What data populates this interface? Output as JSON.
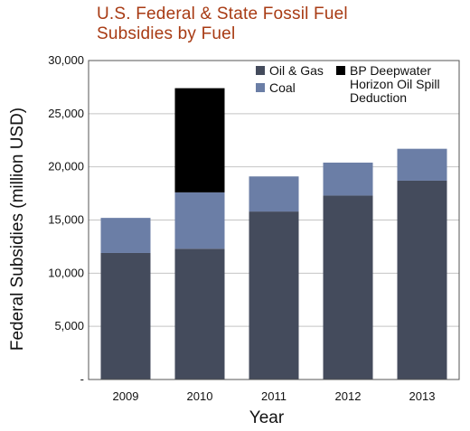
{
  "chart_data": {
    "type": "bar",
    "stacked": true,
    "title_lines": [
      "U.S. Federal & State Fossil Fuel",
      "Subsidies by Fuel"
    ],
    "xlabel": "Year",
    "ylabel": "Federal Subsidies (million USD)",
    "categories": [
      "2009",
      "2010",
      "2011",
      "2012",
      "2013"
    ],
    "ylim": [
      0,
      30000
    ],
    "yticks": [
      0,
      5000,
      10000,
      15000,
      20000,
      25000,
      30000
    ],
    "ytick_labels": [
      "-",
      "5,000",
      "10,000",
      "15,000",
      "20,000",
      "25,000",
      "30,000"
    ],
    "grid": true,
    "legend_position": "top-right",
    "series": [
      {
        "name": "Oil & Gas",
        "color": "#444b5c",
        "values": [
          11900,
          12300,
          15800,
          17300,
          18700
        ]
      },
      {
        "name": "Coal",
        "color": "#6b7ea6",
        "values": [
          3300,
          5300,
          3300,
          3100,
          3000
        ]
      },
      {
        "name": "BP Deepwater Horizon Oil Spill Deduction",
        "legend_lines": [
          "BP Deepwater",
          "Horizon Oil Spill",
          "Deduction"
        ],
        "color": "#000000",
        "values": [
          0,
          9800,
          0,
          0,
          0
        ]
      }
    ]
  }
}
